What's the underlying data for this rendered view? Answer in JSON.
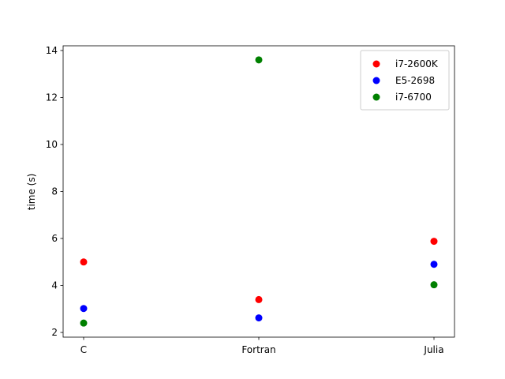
{
  "chart_data": {
    "type": "scatter",
    "categories": [
      "C",
      "Fortran",
      "Julia"
    ],
    "series": [
      {
        "name": "i7-2600K",
        "color": "#ff0000",
        "values": [
          5.0,
          3.4,
          5.88
        ]
      },
      {
        "name": "E5-2698",
        "color": "#0000ff",
        "values": [
          3.02,
          2.62,
          4.9
        ]
      },
      {
        "name": "i7-6700",
        "color": "#008000",
        "values": [
          2.4,
          13.6,
          4.03
        ]
      }
    ],
    "title": "",
    "xlabel": "",
    "ylabel": "time (s)",
    "ylim": [
      1.8,
      14.2
    ],
    "yticks": [
      "2",
      "4",
      "6",
      "8",
      "10",
      "12",
      "14"
    ],
    "ytick_values": [
      2,
      4,
      6,
      8,
      10,
      12,
      14
    ],
    "grid": false,
    "legend_position": "top-right"
  }
}
